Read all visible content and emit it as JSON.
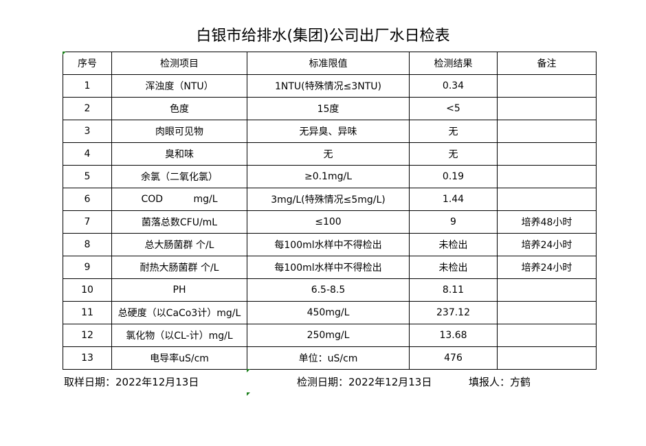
{
  "title": "白银市给排水(集团)公司出厂水日检表",
  "headers": [
    "序号",
    "检测项目",
    "标准限值",
    "检测结果",
    "备注"
  ],
  "rows": [
    [
      "1",
      "浑浊度（NTU）",
      "1NTU(特殊情况≤3NTU)",
      "0.34",
      ""
    ],
    [
      "2",
      "色度",
      "15度",
      "<5",
      ""
    ],
    [
      "3",
      "肉眼可见物",
      "无异臭、异味",
      "无",
      ""
    ],
    [
      "4",
      "臭和味",
      "无",
      "无",
      ""
    ],
    [
      "5",
      "余氯（二氧化氯）",
      "≥0.1mg/L",
      "0.19",
      ""
    ],
    [
      "6",
      "COD          mg/L",
      "3mg/L(特殊情况≤5mg/L)",
      "1.44",
      ""
    ],
    [
      "7",
      "菌落总数CFU/mL",
      "≤100",
      "9",
      "培养48小时"
    ],
    [
      "8",
      "总大肠菌群 个/L",
      "每100ml水样中不得检出",
      "未检出",
      "培养24小时"
    ],
    [
      "9",
      "耐热大肠菌群 个/L",
      "每100ml水样中不得检出",
      "未检出",
      "培养24小时"
    ],
    [
      "10",
      "PH",
      "6.5-8.5",
      "8.11",
      ""
    ],
    [
      "11",
      "总硬度（以CaCo3计）mg/L",
      "450mg/L",
      "237.12",
      ""
    ],
    [
      "12",
      "氯化物（以CL-计）mg/L",
      "250mg/L",
      "13.68",
      ""
    ],
    [
      "13",
      "电导率uS/cm",
      "单位：uS/cm",
      "476",
      ""
    ]
  ],
  "footer": {
    "sample_date": "取样日期：2022年12月13日",
    "test_date": "检测日期：2022年12月13日",
    "reporter": "填报人：方鹤"
  }
}
